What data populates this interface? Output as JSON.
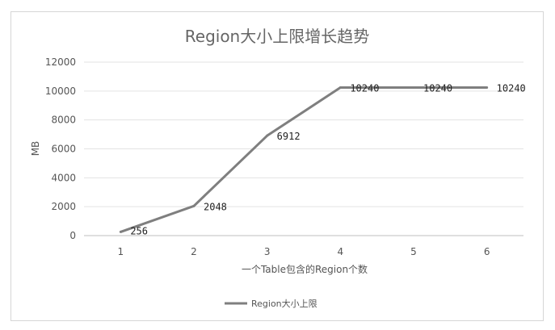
{
  "chart_data": {
    "type": "line",
    "title": "Region大小上限增长趋势",
    "xlabel": "一个Table包含的Region个数",
    "ylabel": "MB",
    "x": [
      1,
      2,
      3,
      4,
      5,
      6
    ],
    "xticks": [
      "1",
      "2",
      "3",
      "4",
      "5",
      "6"
    ],
    "yticks": [
      "0",
      "2000",
      "4000",
      "6000",
      "8000",
      "10000",
      "12000"
    ],
    "ylim": [
      0,
      12000
    ],
    "grid": true,
    "legend_position": "bottom",
    "series": [
      {
        "name": "Region大小上限",
        "values": [
          256,
          2048,
          6912,
          10240,
          10240,
          10240
        ],
        "labels": [
          "256",
          "2048",
          "6912",
          "10240",
          "10240",
          "10240"
        ],
        "color": "#7f7f7f"
      }
    ]
  }
}
